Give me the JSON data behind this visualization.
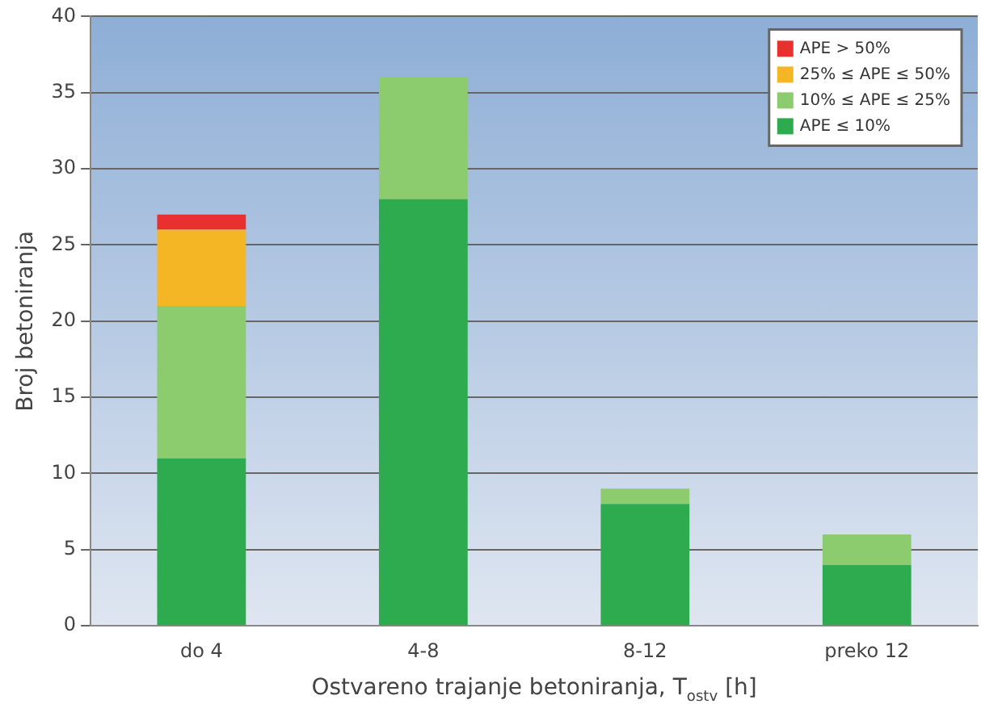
{
  "chart_data": {
    "type": "bar",
    "stacked": true,
    "xlabel": "Ostvareno trajanje betoniranja, T$_{ostv}$ [h]",
    "ylabel": "Broj betoniranja",
    "categories": [
      "do 4",
      "4-8",
      "8-12",
      "preko 12"
    ],
    "series": [
      {
        "name": "APE ≤ 10%",
        "color": "#2eaa4f",
        "values": [
          11,
          28,
          8,
          4
        ]
      },
      {
        "name": "10% ≤ APE ≤ 25%",
        "color": "#8ccb6e",
        "values": [
          10,
          8,
          1,
          2
        ]
      },
      {
        "name": "25% ≤ APE ≤ 50%",
        "color": "#f4b625",
        "values": [
          5,
          0,
          0,
          0
        ]
      },
      {
        "name": "APE > 50%",
        "color": "#e8302f",
        "values": [
          1,
          0,
          0,
          0
        ]
      }
    ],
    "ylim": [
      0,
      40
    ],
    "yticks": [
      0,
      5,
      10,
      15,
      20,
      25,
      30,
      35,
      40
    ],
    "grid": "y",
    "legend": "top right"
  }
}
